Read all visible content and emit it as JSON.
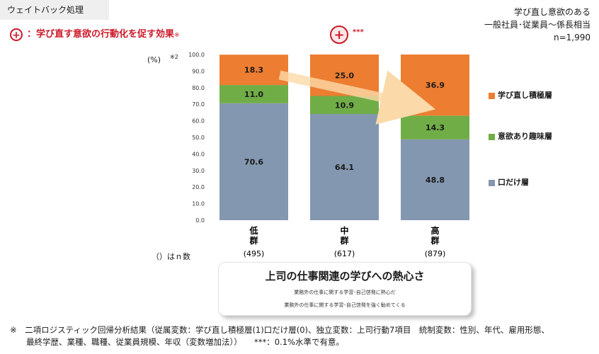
{
  "header": {
    "tab_label": "ウェイトバック処理",
    "title_plus": "+",
    "title": "：学び直す意欲の行動化を促す効果",
    "title_mark": "※",
    "significance_plus": "+",
    "significance_stars": "***",
    "subject_line1": "学び直し意欲のある",
    "subject_line2": "一般社員･従業員～係長相当",
    "subject_line3": "n=1,990"
  },
  "axis": {
    "unit": "(%)",
    "unit_note": "※2"
  },
  "n_label": "（）はｎ数",
  "chart_data": {
    "type": "bar",
    "stacked": true,
    "categories": [
      "低群",
      "中群",
      "高群"
    ],
    "n_values": [
      "(495)",
      "(617)",
      "(879)"
    ],
    "ylim": [
      0,
      100
    ],
    "yticks": [
      "0.0",
      "10.0",
      "20.0",
      "30.0",
      "40.0",
      "50.0",
      "60.0",
      "70.0",
      "80.0",
      "90.0",
      "100.0"
    ],
    "series": [
      {
        "name": "口だけ層",
        "values": [
          70.6,
          64.1,
          48.8
        ],
        "labels": [
          "70.6",
          "64.1",
          "48.8"
        ],
        "color": "#8497b0"
      },
      {
        "name": "意欲あり趣味層",
        "values": [
          11.0,
          10.9,
          14.3
        ],
        "labels": [
          "11.0",
          "10.9",
          "14.3"
        ],
        "color": "#70ad47"
      },
      {
        "name": "学び直し積極層",
        "values": [
          18.3,
          25.0,
          36.9
        ],
        "labels": [
          "18.3",
          "25.0",
          "36.9"
        ],
        "color": "#ed7d31"
      }
    ],
    "legend_position": "right",
    "grid": false
  },
  "legend_order": [
    2,
    1,
    0
  ],
  "callout": {
    "title": "上司の仕事関連の学びへの熱心さ",
    "line1": "業務外の仕事に関する学習･自己啓発に熱心だ",
    "line2": "業務外の仕事に関する学習･自己啓発を強く勧めてくる"
  },
  "footnote": {
    "line1": "※　二項ロジスティック回帰分析結果（従属変数：学び直し積極層(1)口だけ層(0)、独立変数：上司行動7項目　統制変数：性別、年代、雇用形態、",
    "line2": "　　最終学歴、業種、職種、従業員規模、年収（変数増加法））　　***：0.1%水準で有意。"
  },
  "colors": {
    "accent_red": "#cc1a2a",
    "arrow": "#fbd9a8"
  }
}
